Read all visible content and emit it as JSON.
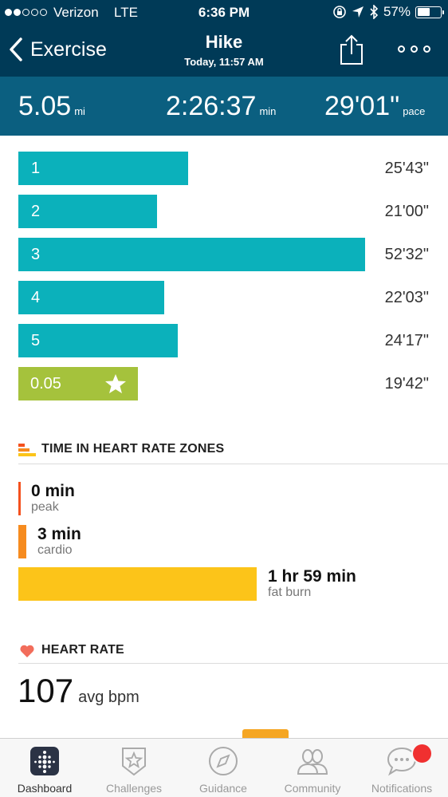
{
  "status_bar": {
    "carrier": "Verizon",
    "network": "LTE",
    "time": "6:36 PM",
    "battery": "57%",
    "battery_level": 0.57
  },
  "header": {
    "back_label": "Exercise",
    "title": "Hike",
    "subtitle": "Today, 11:57 AM"
  },
  "summary": {
    "distance": "5.05",
    "distance_unit": "mi",
    "duration": "2:26:37",
    "duration_unit": "min",
    "pace": "29'01\"",
    "pace_unit": "pace"
  },
  "splits": [
    {
      "label": "1",
      "time": "25'43\"",
      "fraction": 0.49
    },
    {
      "label": "2",
      "time": "21'00\"",
      "fraction": 0.4
    },
    {
      "label": "3",
      "time": "52'32\"",
      "fraction": 1.0
    },
    {
      "label": "4",
      "time": "22'03\"",
      "fraction": 0.42
    },
    {
      "label": "5",
      "time": "24'17\"",
      "fraction": 0.46
    },
    {
      "label": "0.05",
      "time": "19'42\"",
      "fraction": 0.345,
      "partial": true
    }
  ],
  "heart_zones": {
    "title": "TIME IN HEART RATE ZONES",
    "zones": [
      {
        "value": "0 min",
        "label": "peak",
        "color": "#f4511e",
        "fraction": 0.0
      },
      {
        "value": "3 min",
        "label": "cardio",
        "color": "#f68b1f",
        "fraction": 0.025
      },
      {
        "value": "1 hr 59 min",
        "label": "fat burn",
        "color": "#fcc419",
        "fraction": 1.0
      }
    ]
  },
  "heart_rate": {
    "title": "HEART RATE",
    "avg": "107",
    "unit": "avg bpm"
  },
  "tabbar": {
    "tabs": [
      {
        "label": "Dashboard",
        "icon": "dashboard-icon",
        "active": true
      },
      {
        "label": "Challenges",
        "icon": "challenges-star-icon"
      },
      {
        "label": "Guidance",
        "icon": "compass-icon"
      },
      {
        "label": "Community",
        "icon": "community-people-icon"
      },
      {
        "label": "Notifications",
        "icon": "chat-bubble-icon"
      }
    ]
  },
  "colors": {
    "header_bg": "#003a57",
    "summary_bg": "#0b5f80",
    "split_teal": "#0bb1bb",
    "split_partial": "#a5c23c"
  }
}
